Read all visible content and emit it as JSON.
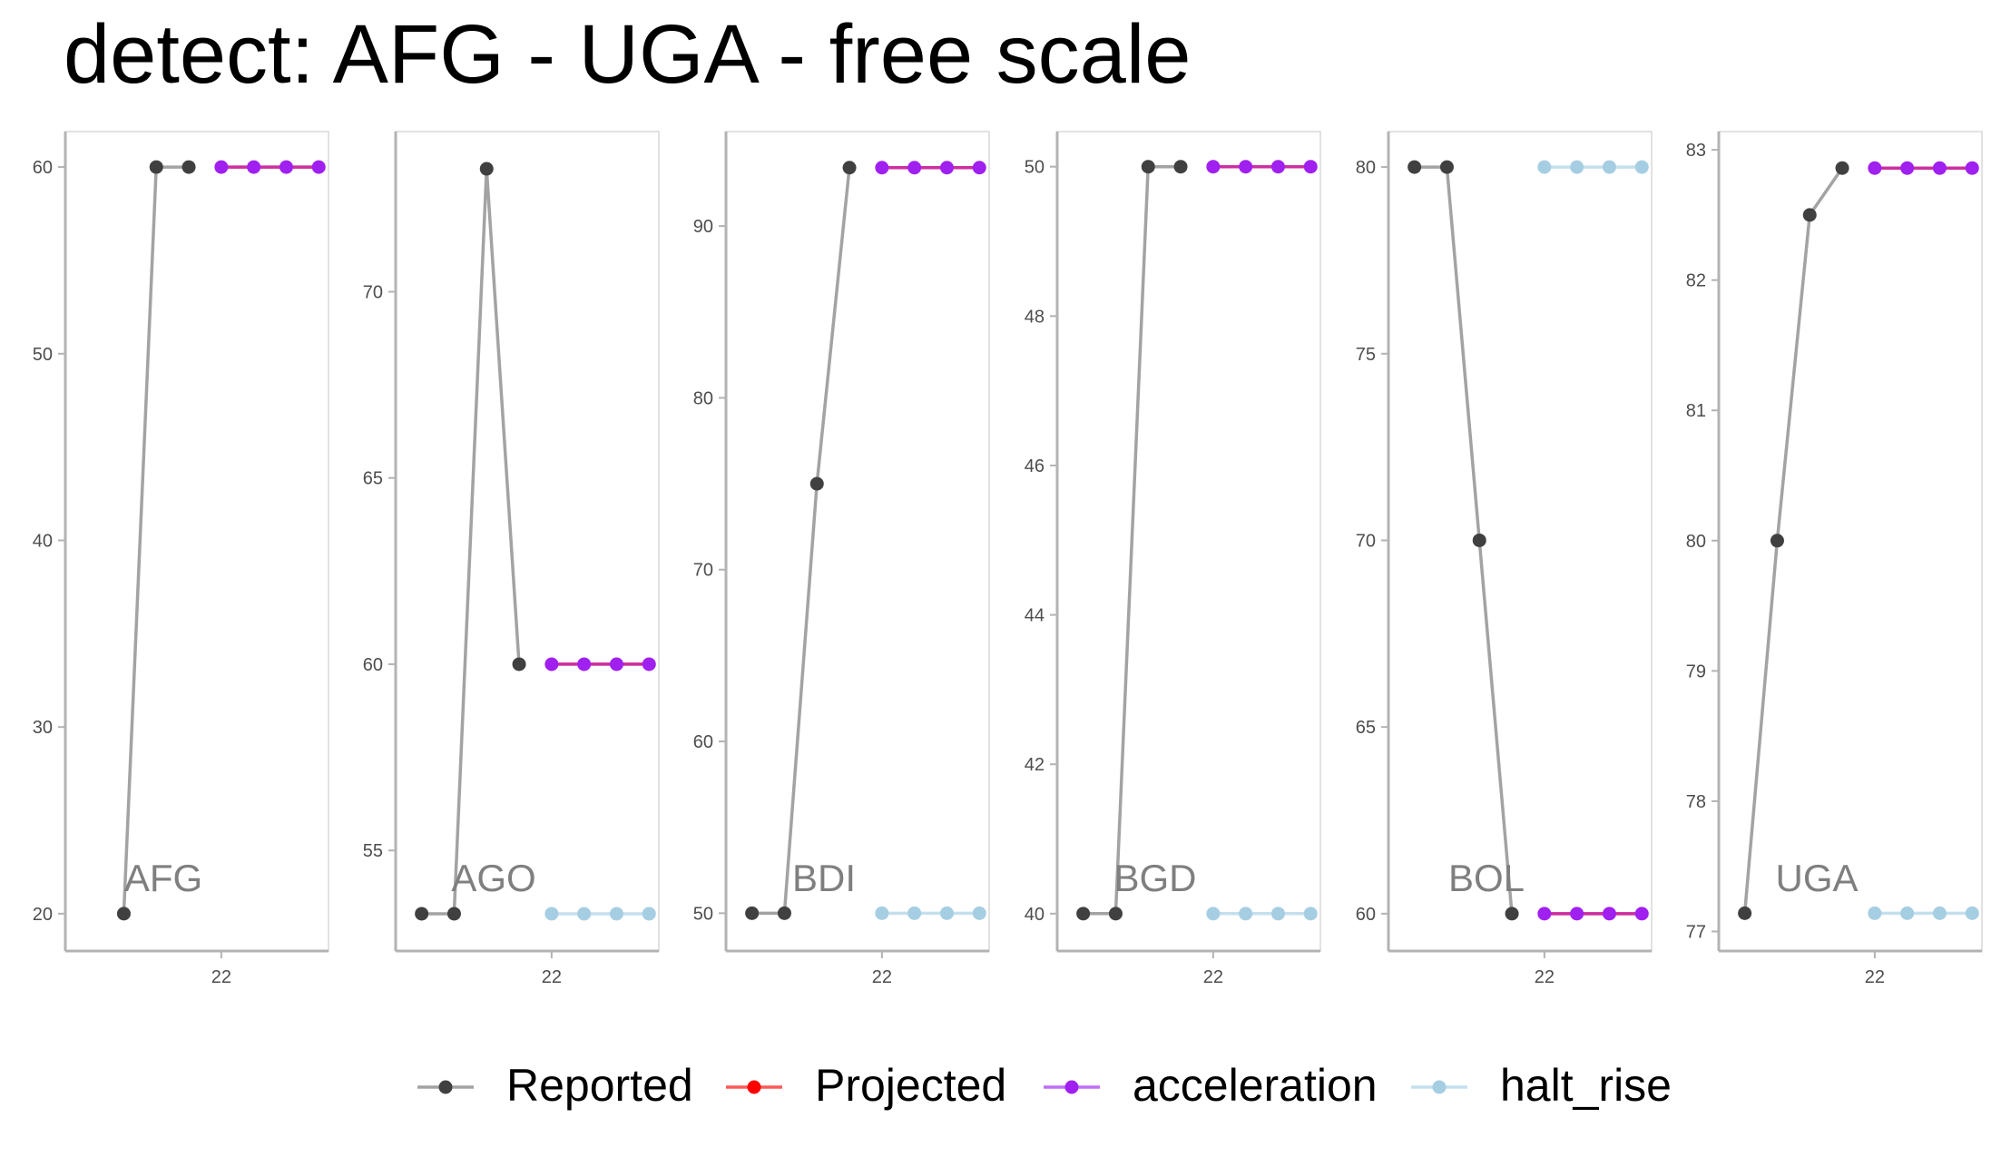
{
  "title": "detect: AFG - UGA - free scale",
  "colors": {
    "reported_line": "#a3a3a3",
    "reported_point": "#404040",
    "projected": "#ff0000",
    "acceleration": "#a020f0",
    "halt_rise": "#a6cee3",
    "axis": "#b3b3b3",
    "panel_border": "#d9d9d9",
    "label_text": "#7f7f7f",
    "tick_text": "#4d4d4d"
  },
  "legend": {
    "placement": "bottom",
    "items": [
      {
        "key": "reported",
        "label": "Reported"
      },
      {
        "key": "projected",
        "label": "Projected"
      },
      {
        "key": "acceleration",
        "label": "acceleration"
      },
      {
        "key": "halt_rise",
        "label": "halt_rise"
      }
    ]
  },
  "chart_data": {
    "type": "line",
    "facet_scales": "free",
    "x_ticks": [
      22
    ],
    "x_tick_labels": [
      "22"
    ],
    "panels": [
      {
        "label": "AFG",
        "y_ticks": [
          20,
          30,
          40,
          50,
          60
        ],
        "ylim": [
          18,
          61.9
        ],
        "series": [
          {
            "key": "reported",
            "x": [
              19,
              20,
              21
            ],
            "y": [
              20,
              60,
              60
            ]
          },
          {
            "key": "projected",
            "x": [
              22,
              23,
              24,
              25
            ],
            "y": [
              60,
              60,
              60,
              60
            ]
          },
          {
            "key": "acceleration",
            "x": [
              22,
              23,
              24,
              25
            ],
            "y": [
              60,
              60,
              60,
              60
            ]
          }
        ]
      },
      {
        "label": "AGO",
        "y_ticks": [
          55,
          60,
          65,
          70
        ],
        "ylim": [
          52.3,
          74.3
        ],
        "series": [
          {
            "key": "reported",
            "x": [
              18,
              19,
              20,
              21
            ],
            "y": [
              53.3,
              53.3,
              73.3,
              60
            ]
          },
          {
            "key": "projected",
            "x": [
              22,
              23,
              24,
              25
            ],
            "y": [
              60,
              60,
              60,
              60
            ]
          },
          {
            "key": "acceleration",
            "x": [
              22,
              23,
              24,
              25
            ],
            "y": [
              60,
              60,
              60,
              60
            ]
          },
          {
            "key": "halt_rise",
            "x": [
              22,
              23,
              24,
              25
            ],
            "y": [
              53.3,
              53.3,
              53.3,
              53.3
            ]
          }
        ]
      },
      {
        "label": "BDI",
        "y_ticks": [
          50,
          60,
          70,
          80,
          90
        ],
        "ylim": [
          47.8,
          95.5
        ],
        "series": [
          {
            "key": "reported",
            "x": [
              18,
              19,
              20,
              21
            ],
            "y": [
              50,
              50,
              75,
              93.4
            ]
          },
          {
            "key": "projected",
            "x": [
              22,
              23,
              24,
              25
            ],
            "y": [
              93.4,
              93.4,
              93.4,
              93.4
            ]
          },
          {
            "key": "acceleration",
            "x": [
              22,
              23,
              24,
              25
            ],
            "y": [
              93.4,
              93.4,
              93.4,
              93.4
            ]
          },
          {
            "key": "halt_rise",
            "x": [
              22,
              23,
              24,
              25
            ],
            "y": [
              50,
              50,
              50,
              50
            ]
          }
        ]
      },
      {
        "label": "BGD",
        "y_ticks": [
          40,
          42,
          44,
          46,
          48,
          50
        ],
        "ylim": [
          39.5,
          50.47
        ],
        "series": [
          {
            "key": "reported",
            "x": [
              18,
              19,
              20,
              21
            ],
            "y": [
              40,
              40,
              50,
              50
            ]
          },
          {
            "key": "projected",
            "x": [
              22,
              23,
              24,
              25
            ],
            "y": [
              50,
              50,
              50,
              50
            ]
          },
          {
            "key": "acceleration",
            "x": [
              22,
              23,
              24,
              25
            ],
            "y": [
              50,
              50,
              50,
              50
            ]
          },
          {
            "key": "halt_rise",
            "x": [
              22,
              23,
              24,
              25
            ],
            "y": [
              40,
              40,
              40,
              40
            ]
          }
        ]
      },
      {
        "label": "BOL",
        "y_ticks": [
          60,
          65,
          70,
          75,
          80
        ],
        "ylim": [
          59,
          80.95
        ],
        "series": [
          {
            "key": "reported",
            "x": [
              18,
              19,
              20,
              21
            ],
            "y": [
              80,
              80,
              70,
              60
            ]
          },
          {
            "key": "projected",
            "x": [
              22,
              23,
              24,
              25
            ],
            "y": [
              60,
              60,
              60,
              60
            ]
          },
          {
            "key": "acceleration",
            "x": [
              22,
              23,
              24,
              25
            ],
            "y": [
              60,
              60,
              60,
              60
            ]
          },
          {
            "key": "halt_rise",
            "x": [
              22,
              23,
              24,
              25
            ],
            "y": [
              80,
              80,
              80,
              80
            ]
          }
        ]
      },
      {
        "label": "UGA",
        "y_ticks": [
          77,
          78,
          79,
          80,
          81,
          82,
          83
        ],
        "ylim": [
          76.85,
          83.14
        ],
        "series": [
          {
            "key": "reported",
            "x": [
              18,
              19,
              20,
              21
            ],
            "y": [
              77.14,
              80,
              82.5,
              82.86
            ]
          },
          {
            "key": "projected",
            "x": [
              22,
              23,
              24,
              25
            ],
            "y": [
              82.86,
              82.86,
              82.86,
              82.86
            ]
          },
          {
            "key": "acceleration",
            "x": [
              22,
              23,
              24,
              25
            ],
            "y": [
              82.86,
              82.86,
              82.86,
              82.86
            ]
          },
          {
            "key": "halt_rise",
            "x": [
              22,
              23,
              24,
              25
            ],
            "y": [
              77.14,
              77.14,
              77.14,
              77.14
            ]
          }
        ]
      }
    ]
  }
}
